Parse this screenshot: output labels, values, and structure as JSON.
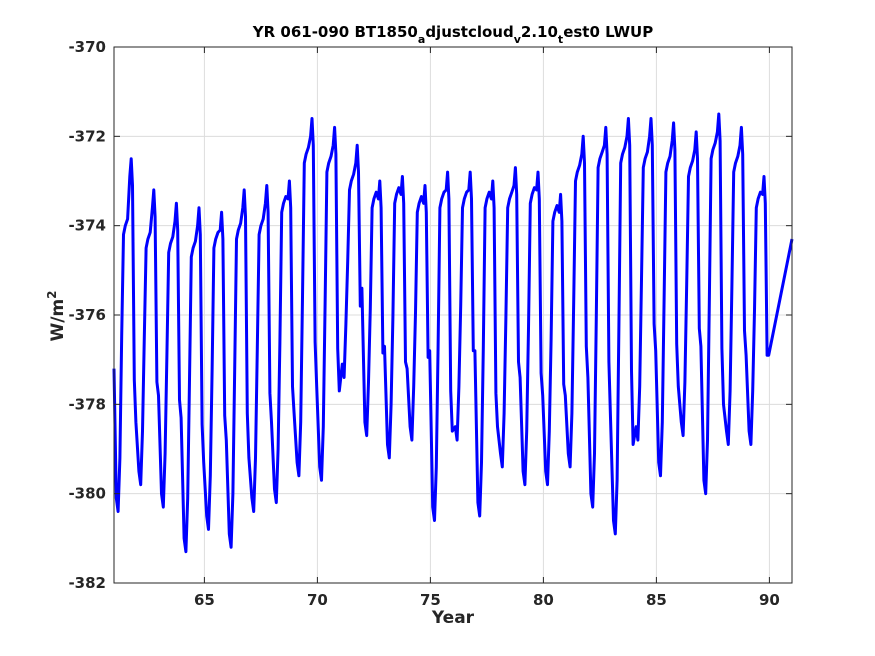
{
  "chart_data": {
    "type": "line",
    "title": {
      "base1": "YR 061-090 BT1850",
      "sub1": "a",
      "mid1": "djustcloud",
      "sub2": "v",
      "mid2": "2.10",
      "sub3": "t",
      "end": "est0 LWUP"
    },
    "xlabel": "Year",
    "ylabel": {
      "base": "W/m",
      "sup": "2"
    },
    "xlim": [
      61,
      91
    ],
    "ylim": [
      -382,
      -370
    ],
    "xticks": [
      65,
      70,
      75,
      80,
      85,
      90
    ],
    "xtick_labels": [
      "65",
      "70",
      "75",
      "80",
      "85",
      "90"
    ],
    "yticks": [
      -382,
      -380,
      -378,
      -376,
      -374,
      -372,
      -370
    ],
    "ytick_labels": [
      "-382",
      "-380",
      "-378",
      "-376",
      "-374",
      "-372",
      "-370"
    ],
    "grid": true,
    "series": [
      {
        "color": "#0000ff",
        "annual_max": [
          -372.5,
          -373.2,
          -373.5,
          -373.6,
          -373.7,
          -373.2,
          -373.1,
          -373.0,
          -371.6,
          -371.8,
          -372.2,
          -373.0,
          -372.9,
          -373.1,
          -372.8,
          -372.8,
          -373.0,
          -372.7,
          -372.8,
          -373.3,
          -372.0,
          -371.8,
          -371.6,
          -371.6,
          -371.7,
          -371.9,
          -371.5,
          -371.8,
          -372.9
        ],
        "annual_min": [
          -380.4,
          -379.8,
          -380.3,
          -381.3,
          -380.8,
          -381.2,
          -380.4,
          -380.2,
          -379.6,
          -379.7,
          -377.4,
          -378.7,
          -379.2,
          -378.8,
          -380.6,
          -378.8,
          -380.5,
          -379.4,
          -379.8,
          -379.8,
          -379.4,
          -380.3,
          -380.9,
          -378.8,
          -379.6,
          -378.7,
          -380.0,
          -378.9,
          -378.9
        ],
        "annual_shoulder": [
          -374.0,
          -374.3,
          -374.4,
          -374.5,
          -374.3,
          -374.1,
          -374.0,
          -373.5,
          -372.4,
          -372.6,
          -373.0,
          -373.4,
          -373.3,
          -373.5,
          -373.4,
          -373.4,
          -373.4,
          -373.4,
          -373.3,
          -373.7,
          -372.8,
          -372.5,
          -372.4,
          -372.5,
          -372.6,
          -372.7,
          -372.3,
          -372.6,
          -373.4
        ],
        "x_start": 61.0,
        "x_end": 91.0,
        "y_start": -377.2,
        "y_end": -374.3
      }
    ]
  }
}
